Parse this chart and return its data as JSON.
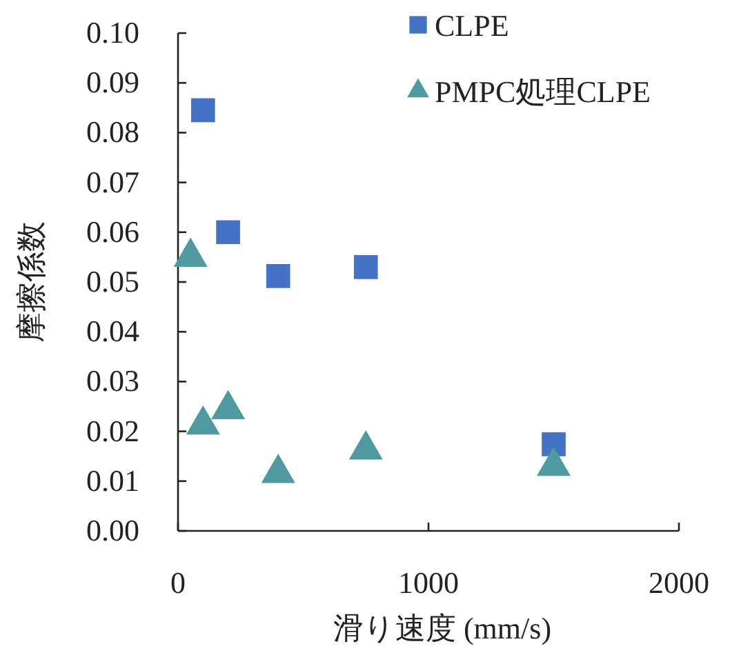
{
  "chart_data": {
    "type": "scatter",
    "xlabel": "滑り速度 (mm/s)",
    "ylabel": "摩擦係数",
    "xlim": [
      0,
      2000
    ],
    "xticks": [
      0,
      1000,
      2000
    ],
    "ylim": [
      0,
      0.1
    ],
    "yticks": [
      {
        "value": 0,
        "label": "0.00"
      },
      {
        "value": 0.01,
        "label": "0.01"
      },
      {
        "value": 0.02,
        "label": "0.02"
      },
      {
        "value": 0.03,
        "label": "0.03"
      },
      {
        "value": 0.04,
        "label": "0.04"
      },
      {
        "value": 0.05,
        "label": "0.05"
      },
      {
        "value": 0.06,
        "label": "0.06"
      },
      {
        "value": 0.07,
        "label": "0.07"
      },
      {
        "value": 0.08,
        "label": "0.08"
      },
      {
        "value": 0.09,
        "label": "0.09"
      },
      {
        "value": 0.1,
        "label": "0.10"
      }
    ],
    "grid": false,
    "legend": "top right",
    "series": [
      {
        "name": "CLPE",
        "color": "#4472c4",
        "marker": "square",
        "x": [
          100,
          200,
          400,
          750,
          1500
        ],
        "values": [
          0.0845,
          0.06,
          0.0512,
          0.053,
          0.0174
        ]
      },
      {
        "name": "PMPC処理CLPE",
        "color": "#4f9aa0",
        "marker": "triangle",
        "x": [
          50,
          100,
          200,
          400,
          750,
          1500
        ],
        "values": [
          0.055,
          0.0213,
          0.0244,
          0.0116,
          0.0163,
          0.013
        ]
      }
    ]
  }
}
